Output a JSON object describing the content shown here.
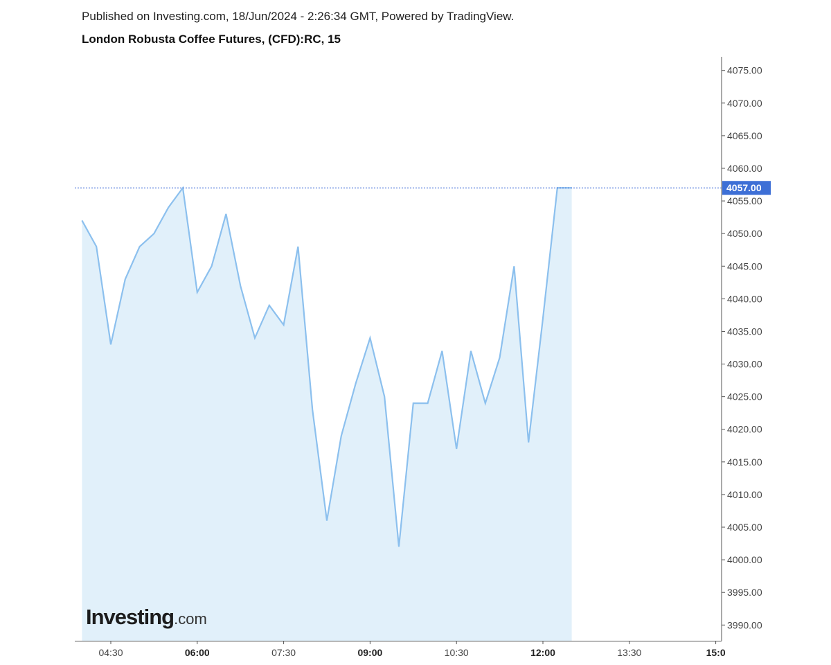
{
  "header": {
    "published": "Published on Investing.com, 18/Jun/2024 - 2:26:34 GMT, Powered by TradingView.",
    "title": "London Robusta Coffee Futures, (CFD):RC, 15"
  },
  "logo": {
    "main": "Investing",
    "suffix": ".com"
  },
  "colors": {
    "line": "#8cc0ee",
    "area": "#e1f0fa",
    "price_tag": "#3d6fd6",
    "price_line": "#2f5fd6",
    "axis": "#555555"
  },
  "chart_data": {
    "type": "area",
    "x_unit": "time",
    "x_start": "04:00",
    "x_step_minutes": 15,
    "x_ticks": [
      {
        "label": "04:30",
        "minutes": 270,
        "bold": false
      },
      {
        "label": "06:00",
        "minutes": 360,
        "bold": true
      },
      {
        "label": "07:30",
        "minutes": 450,
        "bold": false
      },
      {
        "label": "09:00",
        "minutes": 540,
        "bold": true
      },
      {
        "label": "10:30",
        "minutes": 630,
        "bold": false
      },
      {
        "label": "12:00",
        "minutes": 720,
        "bold": true
      },
      {
        "label": "13:30",
        "minutes": 810,
        "bold": false
      },
      {
        "label": "15:0",
        "minutes": 900,
        "bold": true
      }
    ],
    "ylim": [
      3987.5,
      4077.5
    ],
    "y_ticks": [
      "4075.00",
      "4070.00",
      "4065.00",
      "4060.00",
      "4055.00",
      "4050.00",
      "4045.00",
      "4040.00",
      "4035.00",
      "4030.00",
      "4025.00",
      "4020.00",
      "4015.00",
      "4010.00",
      "4005.00",
      "4000.00",
      "3995.00",
      "3990.00"
    ],
    "series": [
      {
        "x": [
          "04:00",
          "04:15",
          "04:30",
          "04:45",
          "05:00",
          "05:15",
          "05:30",
          "05:45",
          "06:00",
          "06:15",
          "06:30",
          "06:45",
          "07:00",
          "07:15",
          "07:30",
          "07:45",
          "08:00",
          "08:15",
          "08:30",
          "08:45",
          "09:00",
          "09:15",
          "09:30",
          "09:45",
          "10:00",
          "10:15",
          "10:30",
          "10:45",
          "11:00",
          "11:15",
          "11:30",
          "11:45",
          "12:00",
          "12:15",
          "12:30"
        ],
        "values": [
          4052,
          4048,
          4033,
          4043,
          4048,
          4050,
          4054,
          4057,
          4041,
          4045,
          4053,
          4042,
          4034,
          4039,
          4036,
          4048,
          4023,
          4006,
          4019,
          4027,
          4034,
          4025,
          4002,
          4024,
          4024,
          4032,
          4017,
          4032,
          4024,
          4031,
          4045,
          4018,
          4037,
          4057,
          4057
        ]
      }
    ],
    "last_price": "4057.00",
    "last_price_value": 4057,
    "grid": false
  }
}
